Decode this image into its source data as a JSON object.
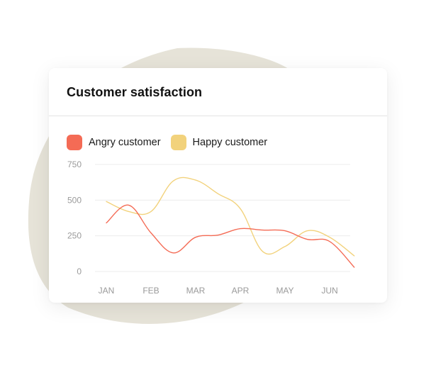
{
  "card": {
    "title": "Customer satisfaction"
  },
  "colors": {
    "angry": "#F46B55",
    "happy": "#F2D27C",
    "blob": "#E6E3D8",
    "grid": "#ECECEC"
  },
  "chart_data": {
    "type": "line",
    "title": "Customer satisfaction",
    "xlabel": "",
    "ylabel": "",
    "categories": [
      "JAN",
      "FEB",
      "MAR",
      "APR",
      "MAY",
      "JUN"
    ],
    "yticks": [
      750,
      500,
      250,
      0
    ],
    "ylim": [
      0,
      750
    ],
    "grid": true,
    "legend_position": "top-left",
    "series": [
      {
        "name": "Angry customer",
        "color": "#F46B55",
        "x": [
          0,
          0.5,
          1,
          1.5,
          2,
          2.5,
          3,
          3.5,
          4,
          4.5,
          5,
          5.55
        ],
        "values": [
          340,
          465,
          270,
          130,
          240,
          255,
          300,
          290,
          285,
          225,
          210,
          30
        ]
      },
      {
        "name": "Happy customer",
        "color": "#F2D27C",
        "x": [
          0,
          0.5,
          1,
          1.5,
          2,
          2.5,
          3,
          3.5,
          4,
          4.5,
          5,
          5.55
        ],
        "values": [
          490,
          420,
          420,
          635,
          640,
          545,
          440,
          140,
          175,
          285,
          240,
          110
        ]
      }
    ]
  }
}
